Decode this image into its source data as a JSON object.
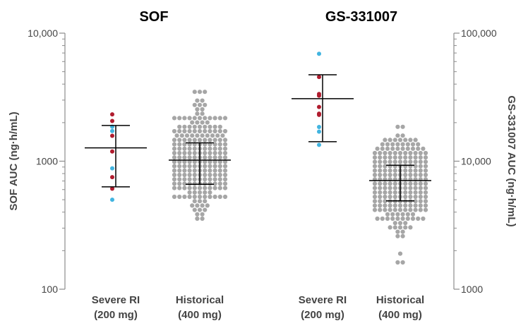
{
  "chart_data": {
    "type": "scatter",
    "scale": "log",
    "left_panel": {
      "title": "SOF",
      "ylabel": "SOF AUC (ng·h/mL)",
      "ylim": [
        100,
        10000
      ],
      "yticks": [
        "10,000",
        "1000",
        "100"
      ]
    },
    "right_panel": {
      "title": "GS-331007",
      "ylabel": "GS-331007 AUC (ng·h/mL)",
      "ylim": [
        1000,
        100000
      ],
      "yticks": [
        "100,000",
        "10,000",
        "1000"
      ]
    },
    "groups": [
      {
        "panel": "left",
        "label1": "Severe RI",
        "label2": "(200 mg)",
        "mean": 1270,
        "sd_low": 630,
        "sd_high": 1900,
        "points": [
          {
            "v": 2320,
            "c": "red"
          },
          {
            "v": 2060,
            "c": "red"
          },
          {
            "v": 1860,
            "c": "blue"
          },
          {
            "v": 1720,
            "c": "blue"
          },
          {
            "v": 1580,
            "c": "red"
          },
          {
            "v": 1190,
            "c": "red"
          },
          {
            "v": 880,
            "c": "blue"
          },
          {
            "v": 750,
            "c": "red"
          },
          {
            "v": 610,
            "c": "red"
          },
          {
            "v": 500,
            "c": "blue"
          }
        ]
      },
      {
        "panel": "left",
        "label1": "Historical",
        "label2": "(400 mg)",
        "mean": 1020,
        "sd_low": 660,
        "sd_high": 1390,
        "range": [
          245,
          3600
        ]
      },
      {
        "panel": "right",
        "label1": "Severe RI",
        "label2": "(200 mg)",
        "mean": 30800,
        "sd_low": 14200,
        "sd_high": 47300,
        "points": [
          {
            "v": 69000,
            "c": "blue"
          },
          {
            "v": 45500,
            "c": "red"
          },
          {
            "v": 33500,
            "c": "red"
          },
          {
            "v": 32500,
            "c": "red"
          },
          {
            "v": 26500,
            "c": "red"
          },
          {
            "v": 23500,
            "c": "red"
          },
          {
            "v": 23000,
            "c": "red"
          },
          {
            "v": 18500,
            "c": "blue"
          },
          {
            "v": 17000,
            "c": "blue"
          },
          {
            "v": 13400,
            "c": "blue"
          }
        ]
      },
      {
        "panel": "right",
        "label1": "Historical",
        "label2": "(400 mg)",
        "mean": 7050,
        "sd_low": 4900,
        "sd_high": 9300,
        "range": [
          1650,
          18800
        ]
      }
    ],
    "colors": {
      "red": "#b01c2e",
      "blue": "#41b4e0",
      "gray": "#a6a6a6",
      "axis": "#8c8c8c",
      "text": "#444444",
      "title": "#000000"
    }
  }
}
